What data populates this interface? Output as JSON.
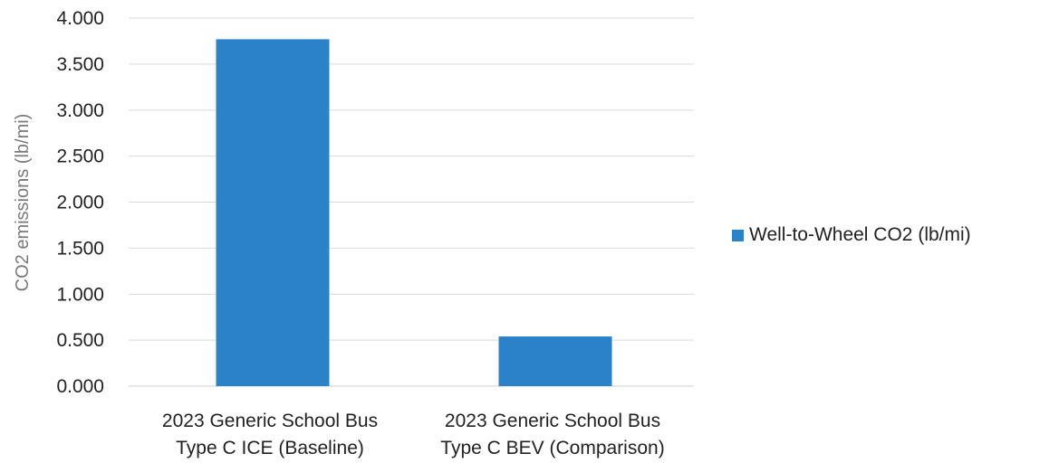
{
  "chart_data": {
    "type": "bar",
    "categories": [
      [
        "2023 Generic School Bus",
        "Type C ICE (Baseline)"
      ],
      [
        "2023 Generic School Bus",
        "Type C BEV (Comparison)"
      ]
    ],
    "series": [
      {
        "name": "Well-to-Wheel CO2 (lb/mi)",
        "values": [
          3.77,
          0.54
        ],
        "color": "#2a82c9"
      }
    ],
    "ylabel": "CO2 emissions (lb/mi)",
    "ylim": [
      0,
      4
    ],
    "yticks": [
      "0.000",
      "0.500",
      "1.000",
      "1.500",
      "2.000",
      "2.500",
      "3.000",
      "3.500",
      "4.000"
    ],
    "grid": true,
    "legend_position": "right"
  }
}
